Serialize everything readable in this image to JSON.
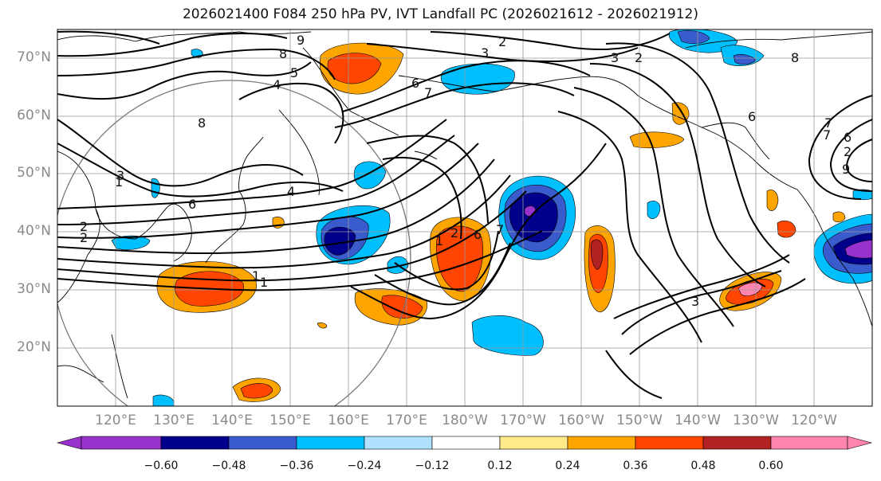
{
  "title": "2026021400 F084 250 hPa PV, IVT Landfall PC (2026021612 - 2026021912)",
  "lat_labels": [
    "70°N",
    "60°N",
    "50°N",
    "40°N",
    "30°N",
    "20°N"
  ],
  "lon_labels": [
    "120°E",
    "130°E",
    "140°E",
    "150°E",
    "160°E",
    "170°E",
    "180°W",
    "170°W",
    "160°W",
    "150°W",
    "140°W",
    "130°W",
    "120°W"
  ],
  "colorbar": {
    "ticks": [
      "−0.60",
      "−0.48",
      "−0.36",
      "−0.24",
      "−0.12",
      "0.12",
      "0.24",
      "0.36",
      "0.48",
      "0.60"
    ],
    "colors": [
      "#9932CC",
      "#00008B",
      "#3A5BCC",
      "#00BFFF",
      "#B0E2FF",
      "#FFFFFF",
      "#FFE98A",
      "#FFA500",
      "#FF4500",
      "#B22222",
      "#FF85B0"
    ]
  },
  "contour_labels": [
    "9",
    "8",
    "5",
    "4",
    "2",
    "3",
    "6",
    "7",
    "1",
    "2",
    "3",
    "6",
    "7",
    "8",
    "9",
    "3",
    "2",
    "1",
    "1",
    "2",
    "6",
    "7",
    "3",
    "2",
    "4",
    "7",
    "6",
    "8",
    "1",
    "2",
    "6"
  ]
}
